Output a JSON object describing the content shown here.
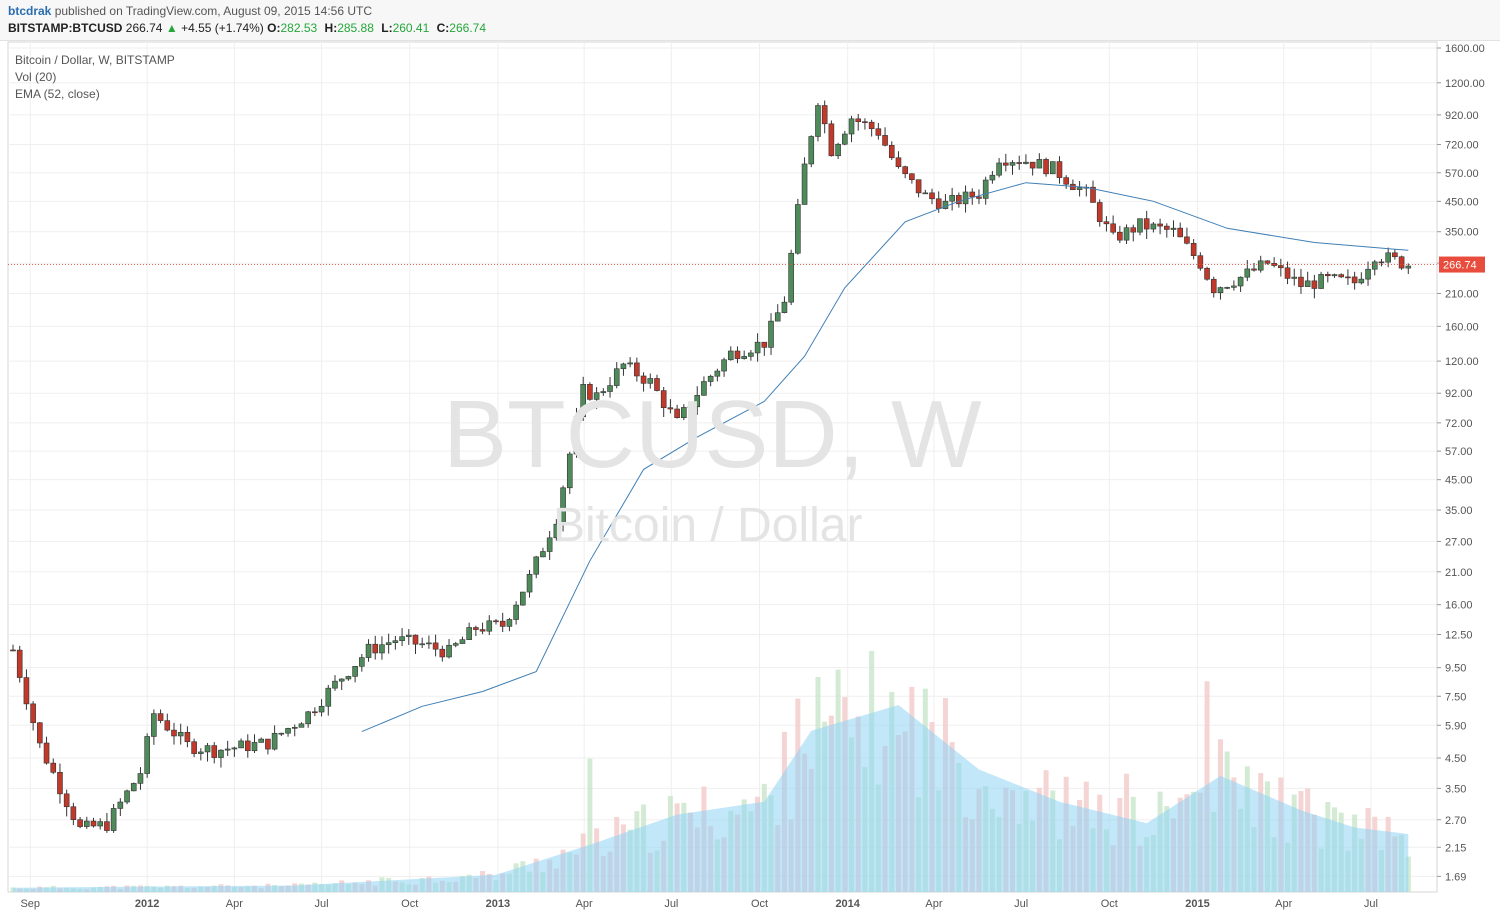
{
  "header": {
    "author": "btcdrak",
    "published_text": "published on TradingView.com, August 09, 2015 14:56 UTC",
    "symbol": "BITSTAMP:BTCUSD",
    "last": "266.74",
    "change": "+4.55 (+1.74%)",
    "open_label": "O:",
    "open": "282.53",
    "high_label": "H:",
    "high": "285.88",
    "low_label": "L:",
    "low": "260.41",
    "close_label": "C:",
    "close": "266.74"
  },
  "legend": {
    "title": "Bitcoin / Dollar, W, BITSTAMP",
    "vol": "Vol (20)",
    "ema": "EMA (52, close)"
  },
  "watermark": {
    "main": "BTCUSD, W",
    "sub": "Bitcoin / Dollar"
  },
  "colors": {
    "up": "#4f8a5b",
    "down": "#c0392b",
    "ema": "#3f7fb5",
    "vol_up": "#c8e6c9",
    "vol_down": "#f2c9c9",
    "vol_ma": "#8fd3f4",
    "last_price": "#e74c3c"
  },
  "chart_data": {
    "type": "candlestick",
    "scale": "log",
    "ylim": [
      1.6,
      1600
    ],
    "y_ticks": [
      "1600.00",
      "1200.00",
      "920.00",
      "720.00",
      "570.00",
      "450.00",
      "350.00",
      "270.00",
      "210.00",
      "160.00",
      "120.00",
      "92.00",
      "72.00",
      "57.00",
      "45.00",
      "35.00",
      "27.00",
      "21.00",
      "16.00",
      "12.50",
      "9.50",
      "7.50",
      "5.90",
      "4.50",
      "3.50",
      "2.70",
      "2.15",
      "1.69"
    ],
    "x_ticks": [
      "Sep",
      "2012",
      "Apr",
      "Jul",
      "Oct",
      "2013",
      "Apr",
      "Jul",
      "Oct",
      "2014",
      "Apr",
      "Jul",
      "Oct",
      "2015",
      "Apr",
      "Jul"
    ],
    "x_range": [
      "2011-08-14",
      "2015-08-16"
    ],
    "last_price": 266.74,
    "last_price_label": "266.74",
    "price_path": [
      [
        "2011-08-14",
        11
      ],
      [
        "2011-09-11",
        5.0
      ],
      [
        "2011-10-23",
        2.5
      ],
      [
        "2011-11-20",
        2.6
      ],
      [
        "2011-12-25",
        4.0
      ],
      [
        "2012-01-08",
        6.5
      ],
      [
        "2012-02-12",
        5.0
      ],
      [
        "2012-03-11",
        4.8
      ],
      [
        "2012-05-06",
        5.1
      ],
      [
        "2012-06-17",
        6.5
      ],
      [
        "2012-07-22",
        8.8
      ],
      [
        "2012-08-19",
        11.0
      ],
      [
        "2012-09-16",
        12.0
      ],
      [
        "2012-10-14",
        11.5
      ],
      [
        "2012-11-11",
        10.8
      ],
      [
        "2012-12-09",
        13.2
      ],
      [
        "2013-01-06",
        13.5
      ],
      [
        "2013-02-03",
        20
      ],
      [
        "2013-03-03",
        33
      ],
      [
        "2013-03-31",
        94
      ],
      [
        "2013-04-14",
        90
      ],
      [
        "2013-05-12",
        116
      ],
      [
        "2013-06-09",
        101
      ],
      [
        "2013-07-07",
        72
      ],
      [
        "2013-08-04",
        100
      ],
      [
        "2013-09-01",
        128
      ],
      [
        "2013-10-06",
        140
      ],
      [
        "2013-10-27",
        200
      ],
      [
        "2013-11-17",
        600
      ],
      [
        "2013-12-01",
        1050
      ],
      [
        "2013-12-15",
        690
      ],
      [
        "2014-01-05",
        900
      ],
      [
        "2014-02-02",
        800
      ],
      [
        "2014-02-23",
        580
      ],
      [
        "2014-03-23",
        470
      ],
      [
        "2014-04-13",
        440
      ],
      [
        "2014-05-18",
        480
      ],
      [
        "2014-06-08",
        650
      ],
      [
        "2014-07-06",
        630
      ],
      [
        "2014-08-03",
        590
      ],
      [
        "2014-09-07",
        480
      ],
      [
        "2014-10-05",
        330
      ],
      [
        "2014-11-02",
        370
      ],
      [
        "2014-12-07",
        350
      ],
      [
        "2015-01-04",
        270
      ],
      [
        "2015-01-18",
        220
      ],
      [
        "2015-02-15",
        240
      ],
      [
        "2015-03-15",
        270
      ],
      [
        "2015-04-19",
        225
      ],
      [
        "2015-05-17",
        235
      ],
      [
        "2015-06-14",
        230
      ],
      [
        "2015-07-05",
        290
      ],
      [
        "2015-08-09",
        266.74
      ]
    ],
    "ema_path": [
      [
        "2012-08-12",
        5.6
      ],
      [
        "2012-10-14",
        6.9
      ],
      [
        "2012-12-16",
        7.8
      ],
      [
        "2013-02-10",
        9.2
      ],
      [
        "2013-04-07",
        23
      ],
      [
        "2013-06-02",
        49
      ],
      [
        "2013-07-28",
        64
      ],
      [
        "2013-10-06",
        86
      ],
      [
        "2013-11-17",
        125
      ],
      [
        "2013-12-29",
        220
      ],
      [
        "2014-03-02",
        380
      ],
      [
        "2014-04-27",
        450
      ],
      [
        "2014-07-06",
        525
      ],
      [
        "2014-09-07",
        505
      ],
      [
        "2014-11-16",
        450
      ],
      [
        "2015-02-01",
        360
      ],
      [
        "2015-05-03",
        320
      ],
      [
        "2015-08-09",
        300
      ]
    ],
    "volume_ma_path": [
      [
        "2011-08-14",
        0.02
      ],
      [
        "2012-06-03",
        0.03
      ],
      [
        "2012-12-30",
        0.08
      ],
      [
        "2013-04-07",
        0.22
      ],
      [
        "2013-07-07",
        0.36
      ],
      [
        "2013-10-06",
        0.42
      ],
      [
        "2013-11-24",
        0.75
      ],
      [
        "2014-02-23",
        0.87
      ],
      [
        "2014-05-18",
        0.57
      ],
      [
        "2014-08-10",
        0.42
      ],
      [
        "2014-11-09",
        0.32
      ],
      [
        "2015-01-25",
        0.54
      ],
      [
        "2015-04-19",
        0.38
      ],
      [
        "2015-06-14",
        0.3
      ],
      [
        "2015-08-09",
        0.27
      ]
    ],
    "volume_peaks": [
      [
        "2013-04-07",
        0.62
      ],
      [
        "2013-11-10",
        0.9
      ],
      [
        "2013-12-01",
        1.0
      ],
      [
        "2014-02-23",
        0.73
      ],
      [
        "2014-10-19",
        0.55
      ],
      [
        "2015-01-11",
        0.98
      ],
      [
        "2015-07-05",
        0.35
      ]
    ]
  }
}
